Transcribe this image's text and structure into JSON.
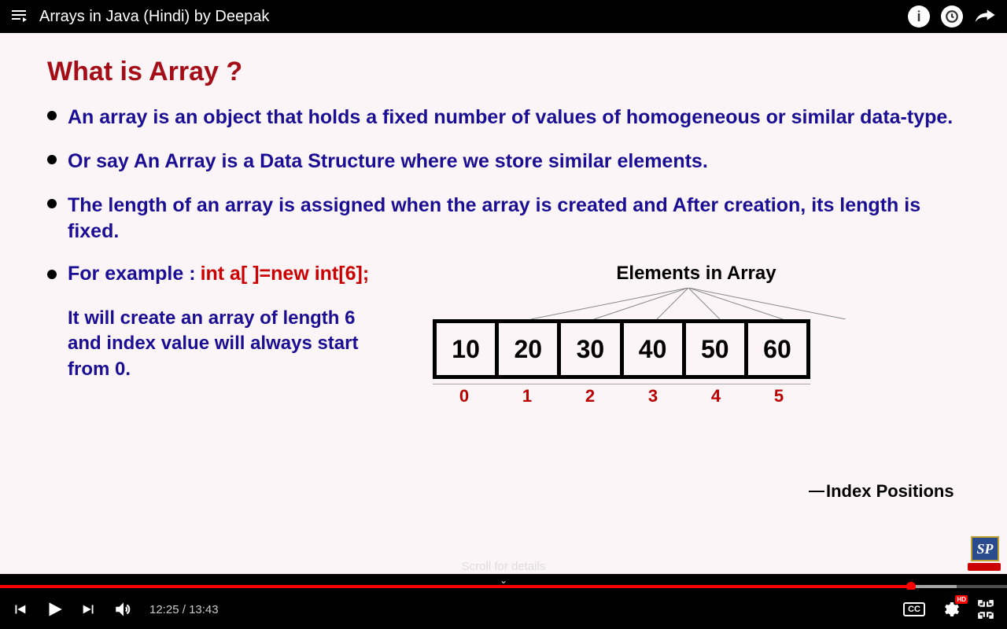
{
  "header": {
    "title": "Arrays in Java (Hindi) by Deepak"
  },
  "slide": {
    "title": "What is Array ?",
    "bullets": [
      "An array is an object that holds a fixed number of values of homogeneous or similar data-type.",
      "Or say An Array is a Data Structure where we store similar elements.",
      "The length of an array is assigned when the array is created and After creation, its length is fixed."
    ],
    "example_label": "For example :",
    "example_code": "int a[ ]=new int[6];",
    "example_desc": "It will create an array of length 6 and index value will always start from 0.",
    "diagram_title": "Elements in Array",
    "cells": [
      "10",
      "20",
      "30",
      "40",
      "50",
      "60"
    ],
    "indices": [
      "0",
      "1",
      "2",
      "3",
      "4",
      "5"
    ],
    "index_label": "Index Positions",
    "logo_text": "SP"
  },
  "player": {
    "current_time": "12:25",
    "duration": "13:43",
    "progress_played_pct": 90.5,
    "progress_loaded_pct": 95,
    "progress_color": "#ff0000",
    "scroll_text": "Scroll for details",
    "cc_label": "CC",
    "hd_label": "HD"
  },
  "colors": {
    "title_color": "#a50e16",
    "bullet_color": "#1a0f94",
    "code_color": "#c00000",
    "index_color": "#b00000",
    "slide_bg": "#fbf5f7"
  }
}
